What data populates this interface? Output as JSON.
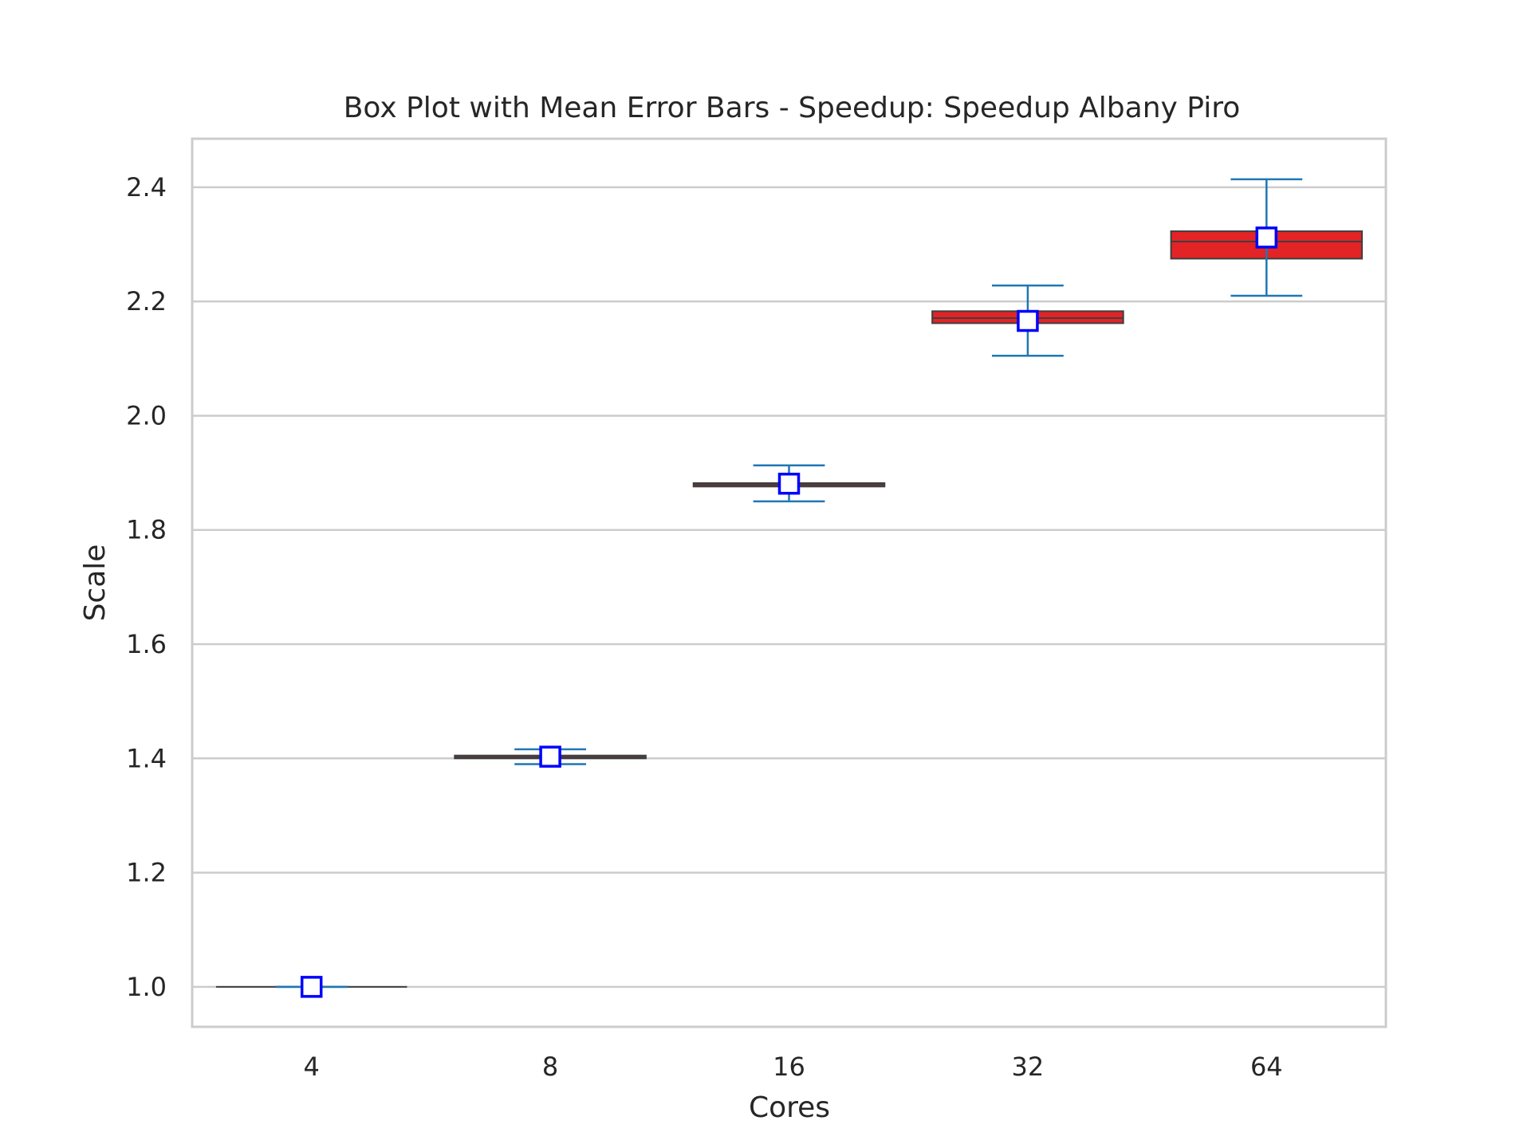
{
  "chart_data": {
    "type": "box",
    "title": "Box Plot with Mean Error Bars - Speedup: Speedup Albany Piro",
    "xlabel": "Cores",
    "ylabel": "Scale",
    "categories": [
      "4",
      "8",
      "16",
      "32",
      "64"
    ],
    "ylim": [
      0.93,
      2.485
    ],
    "yticks": [
      1.0,
      1.2,
      1.4,
      1.6,
      1.8,
      2.0,
      2.2,
      2.4
    ],
    "ytick_labels": [
      "1.0",
      "1.2",
      "1.4",
      "1.6",
      "1.8",
      "2.0",
      "2.2",
      "2.4"
    ],
    "grid": true,
    "boxes": [
      {
        "category": "4",
        "q1": 1.0,
        "median": 1.0,
        "q3": 1.0
      },
      {
        "category": "8",
        "q1": 1.4,
        "median": 1.402,
        "q3": 1.405
      },
      {
        "category": "16",
        "q1": 1.876,
        "median": 1.879,
        "q3": 1.882
      },
      {
        "category": "32",
        "q1": 2.162,
        "median": 2.171,
        "q3": 2.183
      },
      {
        "category": "64",
        "q1": 2.275,
        "median": 2.305,
        "q3": 2.323
      }
    ],
    "means": [
      {
        "category": "4",
        "mean": 1.0,
        "err_low": 1.0,
        "err_high": 1.0
      },
      {
        "category": "8",
        "mean": 1.403,
        "err_low": 1.39,
        "err_high": 1.416
      },
      {
        "category": "16",
        "mean": 1.881,
        "err_low": 1.85,
        "err_high": 1.913
      },
      {
        "category": "32",
        "mean": 2.166,
        "err_low": 2.105,
        "err_high": 2.228
      },
      {
        "category": "64",
        "mean": 2.312,
        "err_low": 2.21,
        "err_high": 2.414
      }
    ],
    "colors": {
      "box_fill": "#e32326",
      "box_edge": "#3f3f3f",
      "errorbar": "#1f77b4",
      "mean_marker_edge": "#0000ff",
      "mean_marker_fill": "#ffffff",
      "grid": "#cccccc",
      "frame": "#cccccc"
    }
  }
}
